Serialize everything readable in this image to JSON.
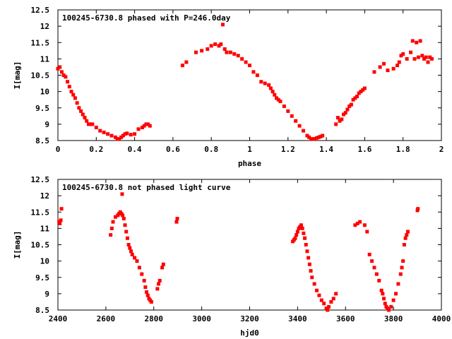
{
  "colors": {
    "points": "#ff0000",
    "axes": "#000000",
    "background": "#ffffff"
  },
  "chart_data": [
    {
      "type": "scatter",
      "title": "100245-6730.8 phased with P=246.0day",
      "xlabel": "phase",
      "ylabel": "I[mag]",
      "xlim": [
        0,
        2
      ],
      "ylim": [
        12.5,
        8.5
      ],
      "y_inverted": true,
      "xticks": [
        "0",
        "0.2",
        "0.4",
        "0.6",
        "0.8",
        "1",
        "1.2",
        "1.4",
        "1.6",
        "1.8",
        "2"
      ],
      "yticks": [
        "8.5",
        "9",
        "9.5",
        "10",
        "10.5",
        "11",
        "11.5",
        "12",
        "12.5"
      ],
      "grid": false,
      "series": [
        {
          "x": [
            0.0,
            0.01,
            0.02,
            0.03,
            0.04,
            0.05,
            0.06,
            0.07,
            0.08,
            0.09,
            0.1,
            0.11,
            0.12,
            0.13,
            0.14,
            0.15,
            0.16,
            0.17,
            0.18,
            0.2,
            0.22,
            0.24,
            0.26,
            0.28,
            0.3,
            0.31,
            0.32,
            0.33,
            0.34,
            0.35,
            0.36,
            0.38,
            0.4,
            0.42,
            0.44,
            0.45,
            0.46,
            0.47,
            0.48,
            0.65,
            0.67,
            0.72,
            0.75,
            0.78,
            0.8,
            0.82,
            0.84,
            0.85,
            0.86,
            0.87,
            0.88,
            0.9,
            0.92,
            0.94,
            0.96,
            0.98,
            1.0,
            1.02,
            1.04,
            1.06,
            1.08,
            1.1,
            1.11,
            1.12,
            1.13,
            1.14,
            1.15,
            1.16,
            1.18,
            1.2,
            1.22,
            1.24,
            1.26,
            1.28,
            1.3,
            1.31,
            1.32,
            1.33,
            1.34,
            1.35,
            1.36,
            1.37,
            1.38,
            1.45,
            1.46,
            1.47,
            1.48,
            1.49,
            1.5,
            1.51,
            1.52,
            1.53,
            1.54,
            1.55,
            1.56,
            1.57,
            1.58,
            1.59,
            1.6,
            1.65,
            1.68,
            1.7,
            1.72,
            1.75,
            1.77,
            1.78,
            1.79,
            1.8,
            1.82,
            1.84,
            1.85,
            1.86,
            1.87,
            1.88,
            1.89,
            1.9,
            1.91,
            1.92,
            1.93,
            1.94,
            1.95
          ],
          "y": [
            10.7,
            10.75,
            10.6,
            10.5,
            10.45,
            10.3,
            10.15,
            10.0,
            9.9,
            9.8,
            9.65,
            9.5,
            9.4,
            9.3,
            9.2,
            9.1,
            9.0,
            9.0,
            9.0,
            8.9,
            8.8,
            8.75,
            8.7,
            8.65,
            8.6,
            8.55,
            8.55,
            8.6,
            8.65,
            8.7,
            8.72,
            8.68,
            8.7,
            8.85,
            8.9,
            8.95,
            9.0,
            9.0,
            8.95,
            10.8,
            10.9,
            11.2,
            11.25,
            11.3,
            11.4,
            11.45,
            11.4,
            11.45,
            12.05,
            11.3,
            11.2,
            11.2,
            11.15,
            11.1,
            11.0,
            10.9,
            10.8,
            10.6,
            10.5,
            10.3,
            10.25,
            10.2,
            10.1,
            10.0,
            9.9,
            9.8,
            9.75,
            9.7,
            9.55,
            9.4,
            9.25,
            9.1,
            8.95,
            8.8,
            8.65,
            8.6,
            8.55,
            8.55,
            8.55,
            8.58,
            8.6,
            8.62,
            8.65,
            9.0,
            9.2,
            9.1,
            9.15,
            9.3,
            9.35,
            9.45,
            9.55,
            9.6,
            9.75,
            9.8,
            9.85,
            9.95,
            10.0,
            10.05,
            10.1,
            10.6,
            10.75,
            10.85,
            10.65,
            10.7,
            10.8,
            10.9,
            11.1,
            11.15,
            11.0,
            11.2,
            11.55,
            11.0,
            11.5,
            11.05,
            11.55,
            11.1,
            11.0,
            11.05,
            10.9,
            11.05,
            11.0
          ]
        }
      ]
    },
    {
      "type": "scatter",
      "title": "100245-6730.8 not phased light curve",
      "xlabel": "hjd0",
      "ylabel": "I[mag]",
      "xlim": [
        2400,
        4000
      ],
      "ylim": [
        12.5,
        8.5
      ],
      "y_inverted": true,
      "xticks": [
        "2400",
        "2600",
        "2800",
        "3000",
        "3200",
        "3400",
        "3600",
        "3800",
        "4000"
      ],
      "yticks": [
        "8.5",
        "9",
        "9.5",
        "10",
        "10.5",
        "11",
        "11.5",
        "12",
        "12.5"
      ],
      "grid": false,
      "series": [
        {
          "x": [
            2405,
            2408,
            2412,
            2415,
            2620,
            2625,
            2630,
            2640,
            2650,
            2655,
            2660,
            2665,
            2668,
            2670,
            2675,
            2680,
            2685,
            2690,
            2695,
            2700,
            2705,
            2710,
            2720,
            2730,
            2740,
            2750,
            2760,
            2765,
            2770,
            2775,
            2780,
            2785,
            2790,
            2815,
            2820,
            2825,
            2835,
            2840,
            2895,
            2898,
            3380,
            3385,
            3390,
            3395,
            3400,
            3405,
            3410,
            3415,
            3420,
            3425,
            3430,
            3435,
            3440,
            3445,
            3450,
            3455,
            3460,
            3470,
            3480,
            3490,
            3500,
            3510,
            3520,
            3525,
            3530,
            3540,
            3550,
            3560,
            3640,
            3650,
            3660,
            3680,
            3690,
            3700,
            3710,
            3720,
            3730,
            3740,
            3750,
            3755,
            3760,
            3765,
            3770,
            3775,
            3780,
            3790,
            3800,
            3810,
            3820,
            3830,
            3835,
            3840,
            3845,
            3850,
            3855,
            3860,
            3900,
            3902
          ],
          "y": [
            11.2,
            11.15,
            11.25,
            11.6,
            10.8,
            11.0,
            11.2,
            11.35,
            11.4,
            11.45,
            11.5,
            11.45,
            12.05,
            11.4,
            11.3,
            11.1,
            10.9,
            10.7,
            10.5,
            10.4,
            10.3,
            10.2,
            10.1,
            10.0,
            9.8,
            9.6,
            9.4,
            9.2,
            9.05,
            8.95,
            8.85,
            8.8,
            8.75,
            9.15,
            9.3,
            9.4,
            9.8,
            9.9,
            11.2,
            11.3,
            10.6,
            10.65,
            10.7,
            10.8,
            10.9,
            11.0,
            11.05,
            11.1,
            11.0,
            10.85,
            10.7,
            10.5,
            10.3,
            10.1,
            9.9,
            9.7,
            9.5,
            9.3,
            9.1,
            8.95,
            8.8,
            8.7,
            8.55,
            8.5,
            8.6,
            8.75,
            8.85,
            9.0,
            11.1,
            11.15,
            11.2,
            11.1,
            10.9,
            10.2,
            10.0,
            9.8,
            9.6,
            9.4,
            9.1,
            9.0,
            8.85,
            8.7,
            8.6,
            8.55,
            8.5,
            8.6,
            8.8,
            9.0,
            9.3,
            9.6,
            9.8,
            10.0,
            10.5,
            10.7,
            10.8,
            10.9,
            11.55,
            11.6
          ]
        }
      ]
    }
  ]
}
